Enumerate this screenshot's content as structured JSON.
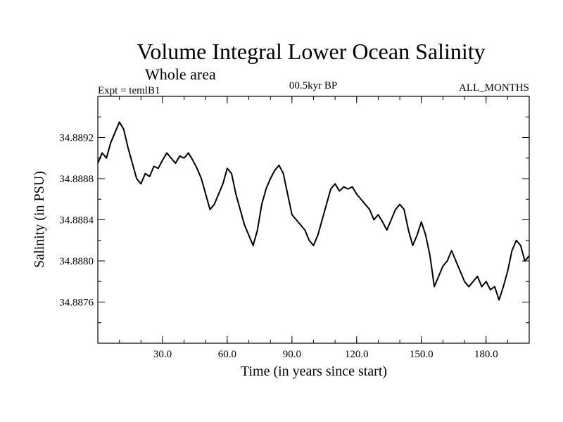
{
  "chart_data": {
    "type": "line",
    "title": "Volume Integral Lower Ocean Salinity",
    "subtitle": "Whole area",
    "annotations": {
      "experiment": "Expt = temlB1",
      "period": "00.5kyr BP",
      "months": "ALL_MONTHS"
    },
    "xlabel": "Time (in years since start)",
    "ylabel": "Salinity (in PSU)",
    "xlim": [
      0,
      200
    ],
    "ylim": [
      34.8872,
      34.8896
    ],
    "xticks": [
      {
        "value": 30,
        "label": "30.0"
      },
      {
        "value": 60,
        "label": "60.0"
      },
      {
        "value": 90,
        "label": "90.0"
      },
      {
        "value": 120,
        "label": "120.0"
      },
      {
        "value": 150,
        "label": "150.0"
      },
      {
        "value": 180,
        "label": "180.0"
      }
    ],
    "yticks": [
      {
        "value": 34.8876,
        "label": "34.8876"
      },
      {
        "value": 34.888,
        "label": "34.8880"
      },
      {
        "value": 34.8884,
        "label": "34.8884"
      },
      {
        "value": 34.8888,
        "label": "34.8888"
      },
      {
        "value": 34.8892,
        "label": "34.8892"
      }
    ],
    "x_minor_step": 10,
    "y_minor_step": 0.0002,
    "grid": false,
    "series": [
      {
        "name": "salinity",
        "x": [
          0,
          2,
          4,
          6,
          8,
          10,
          12,
          14,
          16,
          18,
          20,
          22,
          24,
          26,
          28,
          30,
          32,
          34,
          36,
          38,
          40,
          42,
          44,
          46,
          48,
          50,
          52,
          54,
          56,
          58,
          60,
          62,
          64,
          66,
          68,
          70,
          72,
          74,
          76,
          78,
          80,
          82,
          84,
          86,
          88,
          90,
          92,
          94,
          96,
          98,
          100,
          102,
          104,
          106,
          108,
          110,
          112,
          114,
          116,
          118,
          120,
          122,
          124,
          126,
          128,
          130,
          132,
          134,
          136,
          138,
          140,
          142,
          144,
          146,
          148,
          150,
          152,
          154,
          156,
          158,
          160,
          162,
          164,
          166,
          168,
          170,
          172,
          174,
          176,
          178,
          180,
          182,
          184,
          186,
          188,
          190,
          192,
          194,
          196,
          198,
          200
        ],
        "values": [
          34.88895,
          34.88905,
          34.889,
          34.88915,
          34.88925,
          34.88935,
          34.88928,
          34.8891,
          34.88895,
          34.8888,
          34.88875,
          34.88885,
          34.88882,
          34.88892,
          34.8889,
          34.88898,
          34.88905,
          34.889,
          34.88895,
          34.88902,
          34.889,
          34.88905,
          34.88898,
          34.8889,
          34.8888,
          34.88865,
          34.8885,
          34.88855,
          34.88865,
          34.88875,
          34.8889,
          34.88885,
          34.88865,
          34.8885,
          34.88835,
          34.88825,
          34.88815,
          34.8883,
          34.88855,
          34.8887,
          34.8888,
          34.88888,
          34.88893,
          34.88885,
          34.88865,
          34.88845,
          34.8884,
          34.88835,
          34.8883,
          34.8882,
          34.88815,
          34.88825,
          34.8884,
          34.88855,
          34.8887,
          34.88875,
          34.88868,
          34.88872,
          34.8887,
          34.88872,
          34.88865,
          34.8886,
          34.88855,
          34.8885,
          34.8884,
          34.88845,
          34.88838,
          34.8883,
          34.8884,
          34.8885,
          34.88855,
          34.8885,
          34.8883,
          34.88815,
          34.88825,
          34.88838,
          34.88825,
          34.88805,
          34.88775,
          34.88785,
          34.88795,
          34.888,
          34.8881,
          34.888,
          34.8879,
          34.8878,
          34.88775,
          34.8878,
          34.88785,
          34.88775,
          34.8878,
          34.88772,
          34.88775,
          34.88762,
          34.88775,
          34.8879,
          34.8881,
          34.8882,
          34.88815,
          34.888,
          34.88805
        ]
      }
    ]
  }
}
